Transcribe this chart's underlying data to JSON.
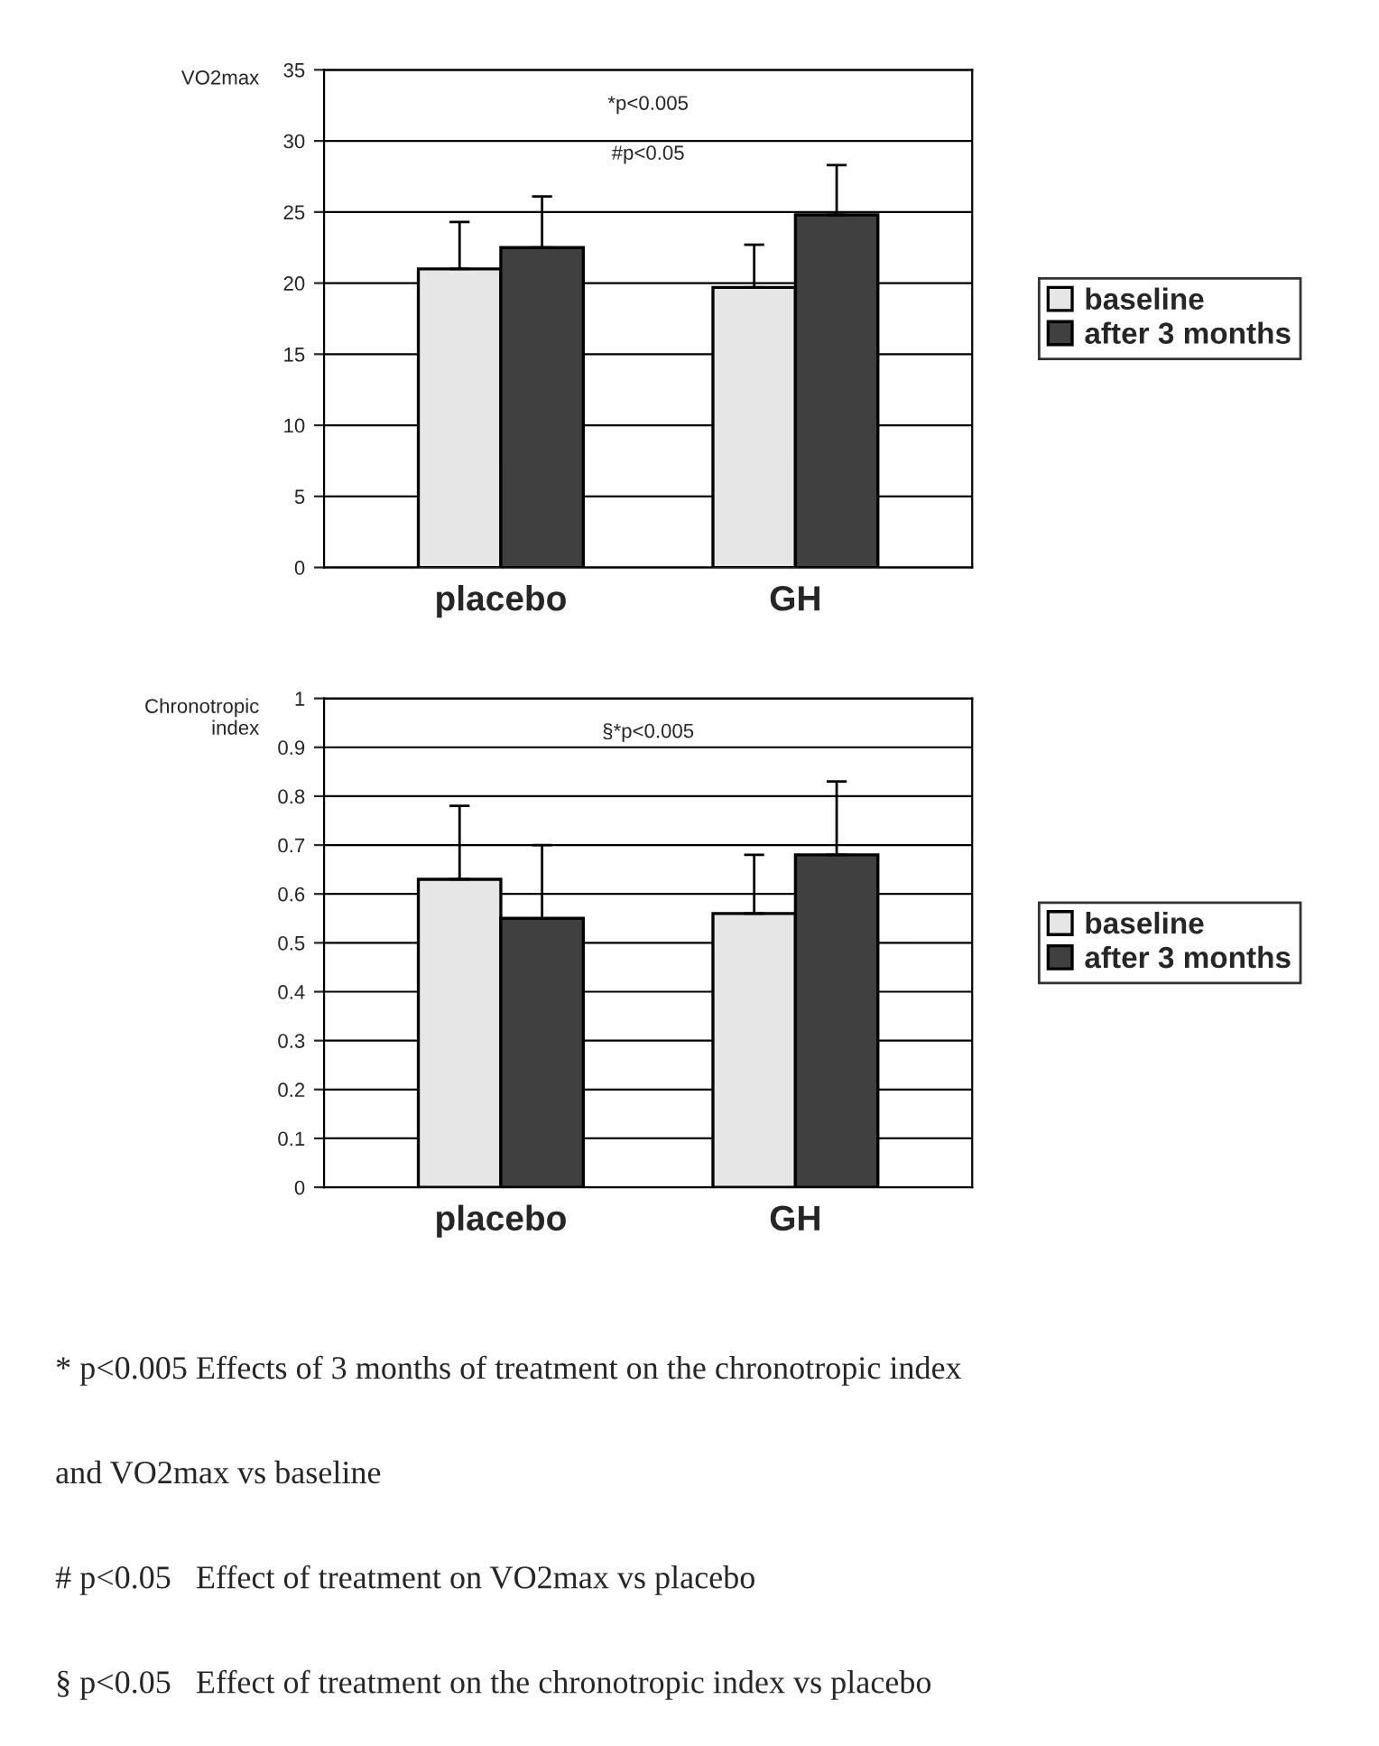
{
  "chart_data": [
    {
      "type": "bar",
      "ylabel": "VO2max",
      "categories": [
        "placebo",
        "GH"
      ],
      "series": [
        {
          "name": "baseline",
          "color": "#e6e6e6",
          "values": [
            21,
            19.7
          ],
          "errors": [
            [
              21,
              24.3
            ],
            [
              19.7,
              22.7
            ]
          ]
        },
        {
          "name": "after 3 months",
          "color": "#404040",
          "values": [
            22.5,
            24.8
          ],
          "errors": [
            [
              22.5,
              26.1
            ],
            [
              24.8,
              28.3
            ]
          ]
        }
      ],
      "ylim": [
        0,
        35
      ],
      "yticks": [
        0,
        5,
        10,
        15,
        20,
        25,
        30,
        35
      ],
      "grid": "y",
      "legend": "right",
      "annotations": [
        "*p<0.005",
        "#p<0.05"
      ]
    },
    {
      "type": "bar",
      "ylabel": "Chronotropic\nindex",
      "categories": [
        "placebo",
        "GH"
      ],
      "series": [
        {
          "name": "baseline",
          "color": "#e6e6e6",
          "values": [
            0.63,
            0.56
          ],
          "errors": [
            [
              0.63,
              0.78
            ],
            [
              0.56,
              0.68
            ]
          ]
        },
        {
          "name": "after 3 months",
          "color": "#404040",
          "values": [
            0.55,
            0.68
          ],
          "errors": [
            [
              0.55,
              0.7
            ],
            [
              0.68,
              0.83
            ]
          ]
        }
      ],
      "ylim": [
        0,
        1
      ],
      "yticks": [
        0,
        0.1,
        0.2,
        0.3,
        0.4,
        0.5,
        0.6,
        0.7,
        0.8,
        0.9,
        1
      ],
      "grid": "y",
      "legend": "right",
      "annotations": [
        "§*p<0.005",
        "* p<0.005 Effects of 3 months of treatment on the chronotropic index",
        "and VO2max vs baseline",
        "# p<0.05   Effect of treatment on VO2max vs placebo",
        "§ p<0.05   Effect of treatment on the chronotropic index vs placebo"
      ]
    }
  ]
}
